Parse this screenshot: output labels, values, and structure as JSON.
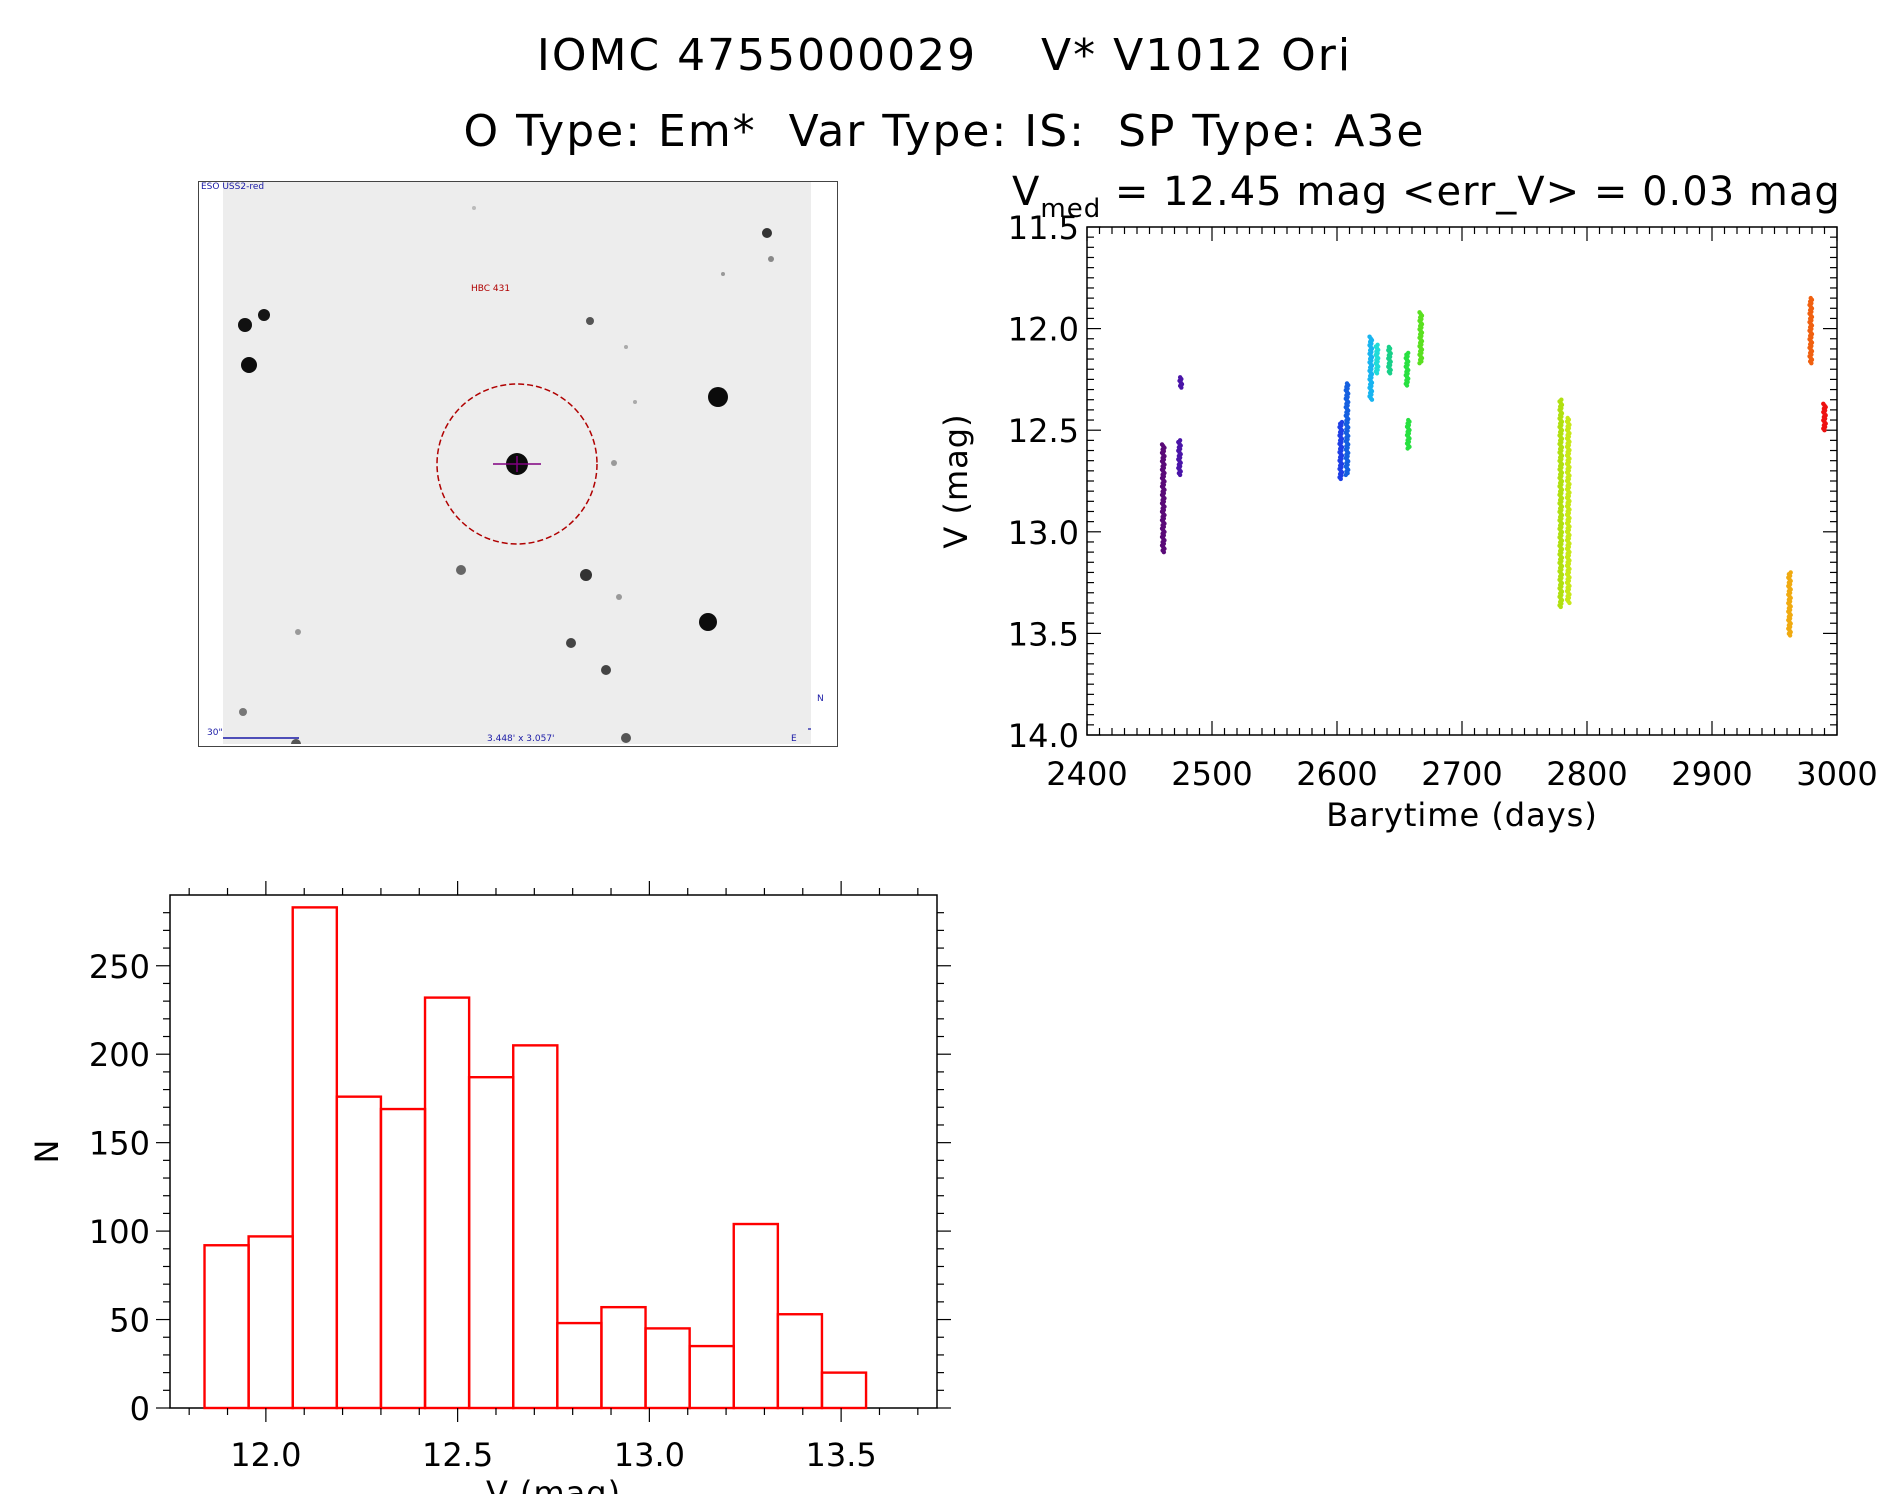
{
  "header": {
    "title_line1": "IOMC 4755000029    V* V1012 Ori",
    "title_line2": "O Type: Em*  Var Type: IS:  SP Type: A3e"
  },
  "sky_image": {
    "survey_label": "ESO USS2-red",
    "object_label": "HBC 431",
    "scale_label": "30\"",
    "size_label": "3.448' x 3.057'",
    "north_label": "N",
    "east_label": "E",
    "circle_color": "#b00000",
    "crosshair_color": "#800080"
  },
  "lightcurve_stats": {
    "v_symbol": "V",
    "v_subscript": "med",
    "text": " = 12.45 mag <err_V> = 0.03 mag"
  },
  "chart_data": [
    {
      "type": "scatter",
      "title": "",
      "xlabel": "Barytime (days)",
      "ylabel": "V (mag)",
      "xlim": [
        2400,
        3000
      ],
      "ylim": [
        14.0,
        11.5
      ],
      "y_inverted": true,
      "xticks": [
        "2400",
        "2500",
        "2600",
        "2700",
        "2800",
        "2900",
        "3000"
      ],
      "yticks": [
        "11.5",
        "12.0",
        "12.5",
        "13.0",
        "13.5",
        "14.0"
      ],
      "groups": [
        {
          "x": 2461,
          "ymin": 12.57,
          "ymax": 13.1,
          "color": "#5a0a78"
        },
        {
          "x": 2474,
          "ymin": 12.55,
          "ymax": 12.72,
          "color": "#4a14a8"
        },
        {
          "x": 2475,
          "ymin": 12.24,
          "ymax": 12.29,
          "color": "#4a14a8"
        },
        {
          "x": 2603,
          "ymin": 12.46,
          "ymax": 12.74,
          "color": "#1f3fe6"
        },
        {
          "x": 2608,
          "ymin": 12.27,
          "ymax": 12.72,
          "color": "#1560e0"
        },
        {
          "x": 2627,
          "ymin": 12.04,
          "ymax": 12.35,
          "color": "#18b4f0"
        },
        {
          "x": 2632,
          "ymin": 12.08,
          "ymax": 12.22,
          "color": "#20dcd8"
        },
        {
          "x": 2642,
          "ymin": 12.09,
          "ymax": 12.22,
          "color": "#18d088"
        },
        {
          "x": 2656,
          "ymin": 12.12,
          "ymax": 12.28,
          "color": "#28e040"
        },
        {
          "x": 2657,
          "ymin": 12.45,
          "ymax": 12.59,
          "color": "#28e040"
        },
        {
          "x": 2667,
          "ymin": 11.92,
          "ymax": 12.17,
          "color": "#5ae020"
        },
        {
          "x": 2779,
          "ymin": 12.35,
          "ymax": 13.37,
          "color": "#b0e010"
        },
        {
          "x": 2785,
          "ymin": 12.44,
          "ymax": 13.35,
          "color": "#c8e818"
        },
        {
          "x": 2962,
          "ymin": 13.2,
          "ymax": 13.51,
          "color": "#f0aa10"
        },
        {
          "x": 2979,
          "ymin": 11.85,
          "ymax": 12.17,
          "color": "#f06010"
        },
        {
          "x": 2990,
          "ymin": 12.37,
          "ymax": 12.5,
          "color": "#ee1010"
        }
      ]
    },
    {
      "type": "bar",
      "title": "",
      "xlabel": "V (mag)",
      "ylabel": "N",
      "xlim": [
        11.75,
        13.75
      ],
      "ylim": [
        0,
        290
      ],
      "xticks": [
        "12.0",
        "12.5",
        "13.0",
        "13.5"
      ],
      "yticks": [
        "0",
        "50",
        "100",
        "150",
        "200",
        "250"
      ],
      "color": "#ff0000",
      "bin_start": 11.84,
      "bin_width": 0.115,
      "values": [
        92,
        97,
        283,
        176,
        169,
        232,
        187,
        205,
        48,
        57,
        45,
        35,
        104,
        53,
        20
      ]
    }
  ]
}
